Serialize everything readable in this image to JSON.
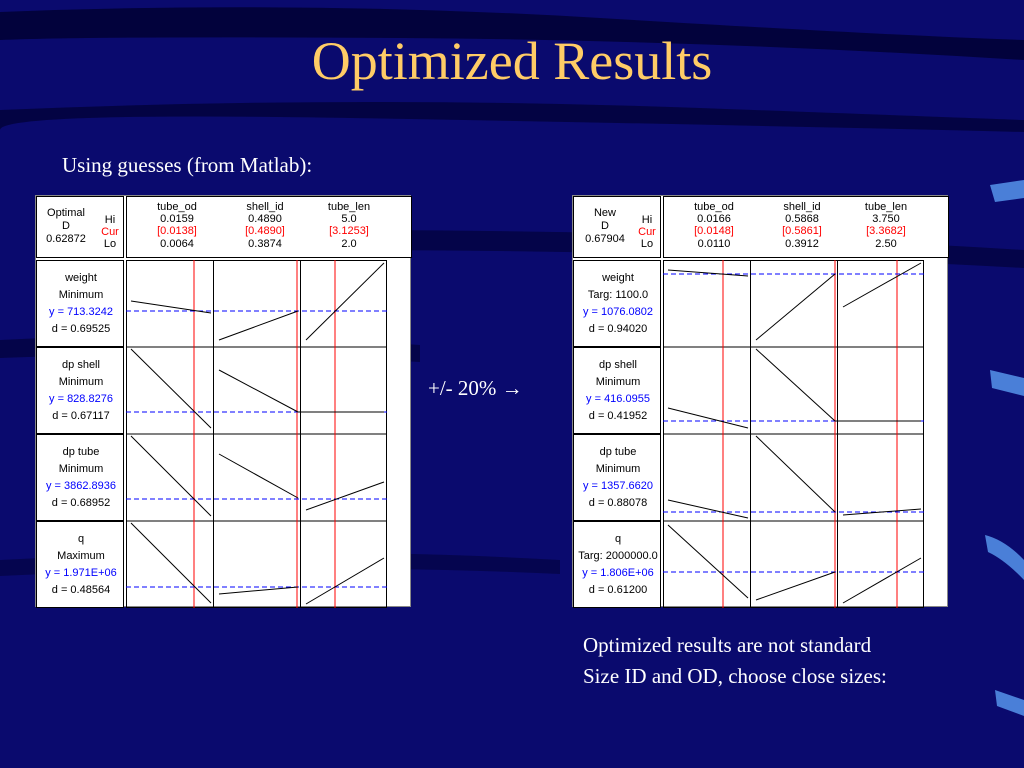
{
  "title": "Optimized Results",
  "subtitle": "Using guesses (from Matlab):",
  "mid_note": "+/- 20% →",
  "footnote": {
    "line1": "Optimized results are not standard",
    "line2": "Size ID and OD, choose close sizes:"
  },
  "colors": {
    "background": "#0a0a6e",
    "title": "#ffcc66",
    "current_value": "#ff0000",
    "predicted_value": "#0000ff"
  },
  "left_panel": {
    "label": "Optimal",
    "d_label": "D",
    "d_value": "0.62872",
    "hi": "Hi",
    "cur": "Cur",
    "lo": "Lo",
    "factors": [
      {
        "name": "tube_od",
        "hi": "0.0159",
        "cur": "[0.0138]",
        "lo": "0.0064"
      },
      {
        "name": "shell_id",
        "hi": "0.4890",
        "cur": "[0.4890]",
        "lo": "0.3874"
      },
      {
        "name": "tube_len",
        "hi": "5.0",
        "cur": "[3.1253]",
        "lo": "2.0"
      }
    ],
    "responses": [
      {
        "name": "weight",
        "goal": "Minimum",
        "y": "y = 713.3242",
        "d": "d = 0.69525"
      },
      {
        "name": "dp shell",
        "goal": "Minimum",
        "y": "y = 828.8276",
        "d": "d = 0.67117"
      },
      {
        "name": "dp tube",
        "goal": "Minimum",
        "y": "y = 3862.8936",
        "d": "d = 0.68952"
      },
      {
        "name": "q",
        "goal": "Maximum",
        "y": "y = 1.971E+06",
        "d": "d = 0.48564"
      }
    ]
  },
  "right_panel": {
    "label": "New",
    "d_label": "D",
    "d_value": "0.67904",
    "hi": "Hi",
    "cur": "Cur",
    "lo": "Lo",
    "factors": [
      {
        "name": "tube_od",
        "hi": "0.0166",
        "cur": "[0.0148]",
        "lo": "0.0110"
      },
      {
        "name": "shell_id",
        "hi": "0.5868",
        "cur": "[0.5861]",
        "lo": "0.3912"
      },
      {
        "name": "tube_len",
        "hi": "3.750",
        "cur": "[3.3682]",
        "lo": "2.50"
      }
    ],
    "responses": [
      {
        "name": "weight",
        "goal": "Targ: 1100.0",
        "y": "y = 1076.0802",
        "d": "d = 0.94020"
      },
      {
        "name": "dp shell",
        "goal": "Minimum",
        "y": "y = 416.0955",
        "d": "d = 0.41952"
      },
      {
        "name": "dp tube",
        "goal": "Minimum",
        "y": "y = 1357.6620",
        "d": "d = 0.88078"
      },
      {
        "name": "q",
        "goal": "Targ: 2000000.0",
        "y": "y = 1.806E+06",
        "d": "d = 0.61200"
      }
    ]
  }
}
